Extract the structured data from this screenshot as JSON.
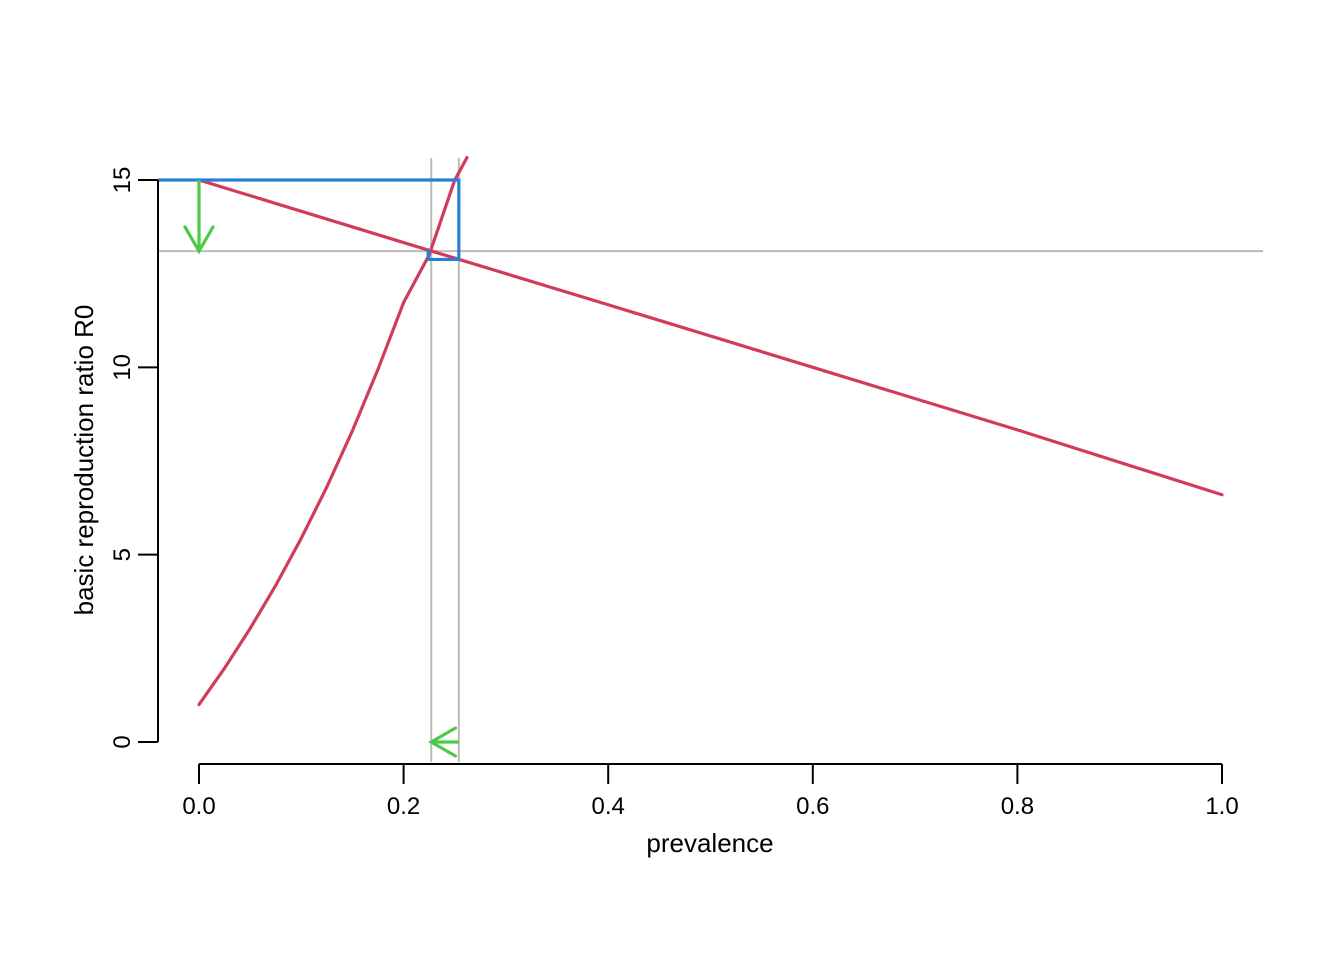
{
  "chart_data": {
    "type": "line",
    "title": "",
    "xlabel": "prevalence",
    "ylabel": "basic reproduction ratio R0",
    "xlim": [
      0,
      1
    ],
    "ylim": [
      0,
      15
    ],
    "x_ticks": [
      0.0,
      0.2,
      0.4,
      0.6,
      0.8,
      1.0
    ],
    "x_tick_labels": [
      "0.0",
      "0.2",
      "0.4",
      "0.6",
      "0.8",
      "1.0"
    ],
    "y_ticks": [
      0,
      5,
      10,
      15
    ],
    "y_tick_labels": [
      "0",
      "5",
      "10",
      "15"
    ],
    "grid": false,
    "series": [
      {
        "color": "#d03c5a",
        "x": [
          0.0,
          0.025,
          0.05,
          0.075,
          0.1,
          0.125,
          0.15,
          0.175,
          0.2,
          0.225,
          0.25,
          0.262
        ],
        "y": [
          1.0,
          1.97,
          3.03,
          4.18,
          5.44,
          6.81,
          8.31,
          9.95,
          11.73,
          13.0,
          15.0,
          15.6
        ]
      },
      {
        "color": "#d03c5a",
        "x": [
          0.0,
          0.2,
          0.4,
          0.6,
          0.8,
          1.0
        ],
        "y": [
          15.0,
          13.33,
          11.67,
          10.0,
          8.33,
          6.6
        ]
      }
    ],
    "reference_lines": {
      "color": "#bbbbbb",
      "vertical_x": [
        0.227,
        0.254
      ],
      "horizontal_y": [
        13.1
      ]
    },
    "annotation_path": {
      "color": "#2a7fd4",
      "points": [
        [
          -0.04,
          15.0
        ],
        [
          0.254,
          15.0
        ],
        [
          0.254,
          12.88
        ],
        [
          0.224,
          12.88
        ],
        [
          0.224,
          13.1
        ],
        [
          0.227,
          13.1
        ]
      ]
    },
    "arrows": [
      {
        "color": "#4ec94a",
        "from": [
          0.0,
          15.0
        ],
        "to": [
          0.0,
          13.1
        ]
      },
      {
        "color": "#4ec94a",
        "from": [
          0.254,
          0.0
        ],
        "to": [
          0.227,
          0.0
        ]
      }
    ]
  }
}
